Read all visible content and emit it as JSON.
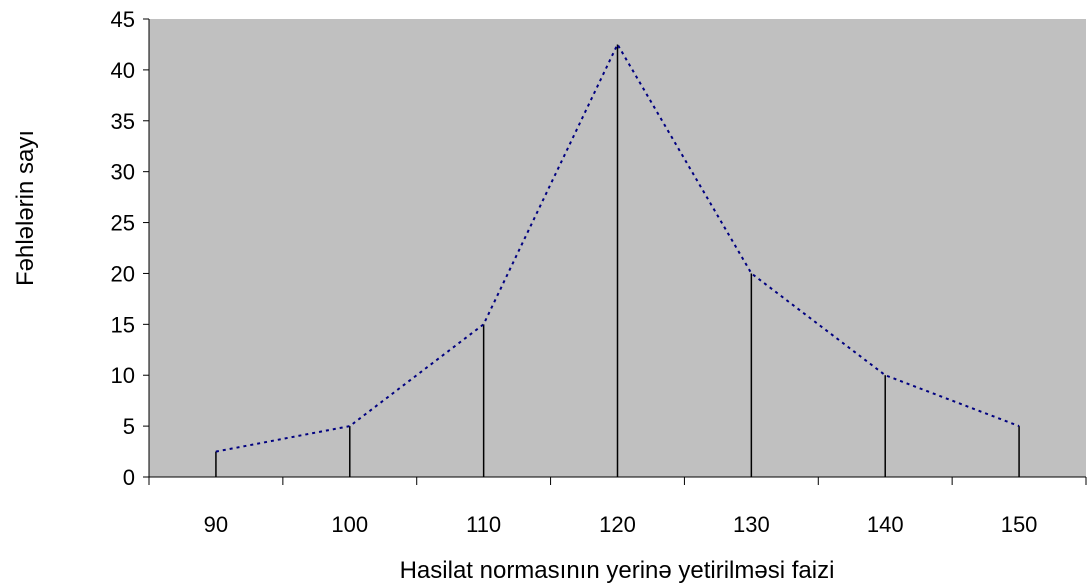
{
  "chart_data": {
    "type": "line",
    "title": "",
    "xlabel": "Hasilat normasının yerinə yetirilməsi faizi",
    "ylabel": "Fəhlələrin sayı",
    "categories": [
      "90",
      "100",
      "110",
      "120",
      "130",
      "140",
      "150"
    ],
    "x": [
      90,
      100,
      110,
      120,
      130,
      140,
      150
    ],
    "series": [
      {
        "values": [
          2.5,
          5,
          15,
          42.5,
          20,
          10,
          5
        ]
      }
    ],
    "ylim": [
      0,
      45
    ],
    "yticks": [
      0,
      5,
      10,
      15,
      20,
      25,
      30,
      35,
      40,
      45
    ],
    "grid": false,
    "legend": "none",
    "style": {
      "plot_background": "#c0c0c0",
      "line_color": "#000080",
      "line_style": "dotted",
      "drop_line_color": "#000000"
    }
  }
}
